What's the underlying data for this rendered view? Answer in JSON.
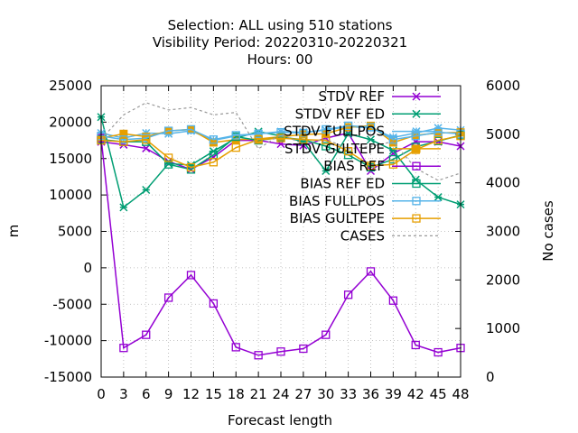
{
  "chart_data": {
    "type": "line",
    "title_lines": [
      "Selection: ALL using   510 stations",
      "Visibility   Period: 20220310-20220321",
      "Hours:  00"
    ],
    "xlabel": "Forecast length",
    "ylabel": "m",
    "y2label": "No cases",
    "x": [
      0,
      3,
      6,
      9,
      12,
      15,
      18,
      21,
      24,
      27,
      30,
      33,
      36,
      39,
      42,
      45,
      48
    ],
    "xlim": [
      0,
      48
    ],
    "ylim": [
      -15000,
      25000
    ],
    "y2lim": [
      0,
      6000
    ],
    "yticks": [
      -15000,
      -10000,
      -5000,
      0,
      5000,
      10000,
      15000,
      20000,
      25000
    ],
    "y2ticks": [
      0,
      1000,
      2000,
      3000,
      4000,
      5000,
      6000
    ],
    "grid": true,
    "legend_position": "top-right",
    "series": [
      {
        "name": "STDV REF",
        "axis": "y1",
        "color": "#9400d3",
        "dash": "",
        "marker": "x",
        "values": [
          17300,
          16900,
          16400,
          14600,
          13500,
          15200,
          17500,
          17500,
          17000,
          16800,
          17800,
          18500,
          13300,
          15700,
          17300,
          17300,
          16700
        ]
      },
      {
        "name": "STDV REF_R_ED",
        "legend_label": "STDV REF ED",
        "axis": "y1",
        "color": "#009e73",
        "dash": "",
        "marker": "asterisk",
        "values": [
          20700,
          8300,
          10700,
          14300,
          14100,
          16000,
          17800,
          18700,
          18100,
          17300,
          13300,
          18400,
          17600,
          16100,
          12100,
          9700,
          8700
        ]
      },
      {
        "name": "STDV FULLPOS",
        "axis": "y1",
        "color": "#56b4e9",
        "dash": "",
        "marker": "star",
        "values": [
          18500,
          17800,
          18500,
          18400,
          18800,
          17500,
          18100,
          18400,
          18700,
          18600,
          18900,
          19400,
          19200,
          17900,
          18500,
          19200,
          18900
        ]
      },
      {
        "name": "STDV GULTEPE",
        "axis": "y1",
        "color": "#e69f00",
        "dash": "",
        "marker": "box",
        "values": [
          17800,
          18400,
          18000,
          18800,
          19000,
          17200,
          17600,
          17700,
          18000,
          18300,
          18400,
          19300,
          19500,
          17200,
          18200,
          18500,
          18600
        ]
      },
      {
        "name": "BIAS REF",
        "axis": "y1",
        "color": "#9400d3",
        "dash": "",
        "marker": "open-square",
        "values": [
          17800,
          -11000,
          -9200,
          -4100,
          -1000,
          -4900,
          -10900,
          -12000,
          -11500,
          -11100,
          -9200,
          -3700,
          -500,
          -4500,
          -10600,
          -11600,
          -11000
        ]
      },
      {
        "name": "BIAS REF_R_ED",
        "legend_label": "BIAS REF ED",
        "axis": "y1",
        "color": "#009e73",
        "dash": "",
        "marker": "open-square",
        "values": [
          17600,
          17300,
          17300,
          14200,
          13500,
          15500,
          18000,
          17500,
          17900,
          17600,
          16700,
          15500,
          13800,
          14900,
          16600,
          17400,
          18200
        ]
      },
      {
        "name": "BIAS FULLPOS",
        "axis": "y1",
        "color": "#56b4e9",
        "dash": "",
        "marker": "open-square",
        "values": [
          18100,
          17600,
          17800,
          18800,
          19000,
          17600,
          18200,
          18400,
          18600,
          18500,
          19000,
          19500,
          19300,
          17600,
          18100,
          18600,
          18400
        ]
      },
      {
        "name": "BIAS GULTEPE",
        "axis": "y1",
        "color": "#e69f00",
        "dash": "",
        "marker": "open-square",
        "values": [
          17500,
          17300,
          17600,
          15100,
          13800,
          14500,
          16500,
          17600,
          17800,
          17600,
          17500,
          16000,
          14000,
          14200,
          16200,
          17500,
          18100
        ]
      },
      {
        "name": "CASES",
        "axis": "y2",
        "color": "#999999",
        "dash": "3,3",
        "marker": "none",
        "values": [
          4900,
          5400,
          5650,
          5500,
          5550,
          5400,
          5450,
          4700,
          5000,
          4800,
          4900,
          4700,
          4750,
          4850,
          4300,
          4050,
          4200
        ]
      }
    ]
  }
}
